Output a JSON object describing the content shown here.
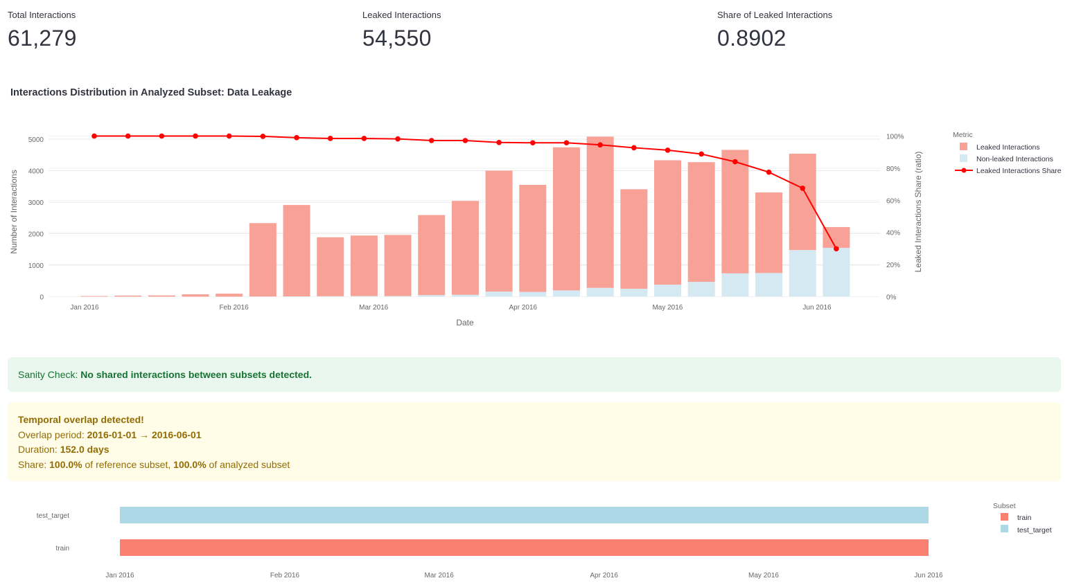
{
  "metrics": [
    {
      "label": "Total Interactions",
      "value": "61,279"
    },
    {
      "label": "Leaked Interactions",
      "value": "54,550"
    },
    {
      "label": "Share of Leaked Interactions",
      "value": "0.8902"
    }
  ],
  "section_title": "Interactions Distribution in Analyzed Subset: Data Leakage",
  "chart_data": [
    {
      "type": "bar",
      "stacked": true,
      "xlabel": "Date",
      "ylabel": "Number of Interactions",
      "y2label": "Leaked Interactions Share (ratio)",
      "x_ticks": [
        "Jan 2016",
        "Feb 2016",
        "Mar 2016",
        "Apr 2016",
        "May 2016",
        "Jun 2016"
      ],
      "y_ticks": [
        "0",
        "1000",
        "2000",
        "3000",
        "4000",
        "5000"
      ],
      "y2_ticks": [
        "0%",
        "20%",
        "40%",
        "60%",
        "80%",
        "100%"
      ],
      "ylim": [
        0,
        5300
      ],
      "y2lim": [
        0,
        1.0
      ],
      "legend_title": "Metric",
      "legend_position": "top-right",
      "colors": {
        "leaked": "#f8a197",
        "nonleaked": "#d4e9f1",
        "share": "#ff0000"
      },
      "x": [
        "2016-01-01",
        "2016-01-08",
        "2016-01-15",
        "2016-01-22",
        "2016-01-29",
        "2016-02-05",
        "2016-02-12",
        "2016-02-19",
        "2016-02-26",
        "2016-03-04",
        "2016-03-11",
        "2016-03-18",
        "2016-03-25",
        "2016-04-01",
        "2016-04-08",
        "2016-04-15",
        "2016-04-22",
        "2016-04-29",
        "2016-05-06",
        "2016-05-13",
        "2016-05-20",
        "2016-05-27",
        "2016-06-03"
      ],
      "series": [
        {
          "name": "Leaked Interactions",
          "values": [
            20,
            35,
            40,
            75,
            95,
            2330,
            2900,
            1870,
            1920,
            1940,
            2540,
            2980,
            3840,
            3400,
            4540,
            4800,
            3160,
            3950,
            3800,
            3920,
            2560,
            3060,
            660
          ]
        },
        {
          "name": "Non-leaked Interactions",
          "values": [
            0,
            0,
            0,
            0,
            0,
            5,
            10,
            15,
            20,
            20,
            50,
            60,
            160,
            150,
            200,
            280,
            250,
            380,
            470,
            740,
            750,
            1480,
            1550
          ]
        },
        {
          "name": "Leaked Interactions Share",
          "values": [
            1.0,
            1.0,
            1.0,
            1.0,
            1.0,
            0.998,
            0.99,
            0.985,
            0.985,
            0.982,
            0.972,
            0.972,
            0.96,
            0.958,
            0.958,
            0.945,
            0.927,
            0.912,
            0.888,
            0.84,
            0.775,
            0.675,
            0.298
          ]
        }
      ]
    },
    {
      "type": "bar",
      "orientation": "horizontal",
      "x_ticks": [
        "Jan 2016",
        "Feb 2016",
        "Mar 2016",
        "Apr 2016",
        "May 2016",
        "Jun 2016"
      ],
      "categories": [
        "test_target",
        "train"
      ],
      "legend_title": "Subset",
      "legend_position": "top-right",
      "colors": {
        "train": "#fa8072",
        "test_target": "#add8e6"
      },
      "series": [
        {
          "name": "train",
          "start": "2016-01-01",
          "end": "2016-06-01"
        },
        {
          "name": "test_target",
          "start": "2016-01-01",
          "end": "2016-06-01"
        }
      ]
    }
  ],
  "alerts": {
    "success": {
      "prefix": "Sanity Check: ",
      "bold": "No shared interactions between subsets detected."
    },
    "warning": {
      "title": "Temporal overlap detected!",
      "period_label": "Overlap period: ",
      "period_value": "2016-01-01 → 2016-06-01",
      "duration_label": "Duration: ",
      "duration_value": "152.0 days",
      "share_label": "Share: ",
      "share_ref": "100.0%",
      "share_ref_text": " of reference subset, ",
      "share_an": "100.0%",
      "share_an_text": " of analyzed subset"
    }
  }
}
